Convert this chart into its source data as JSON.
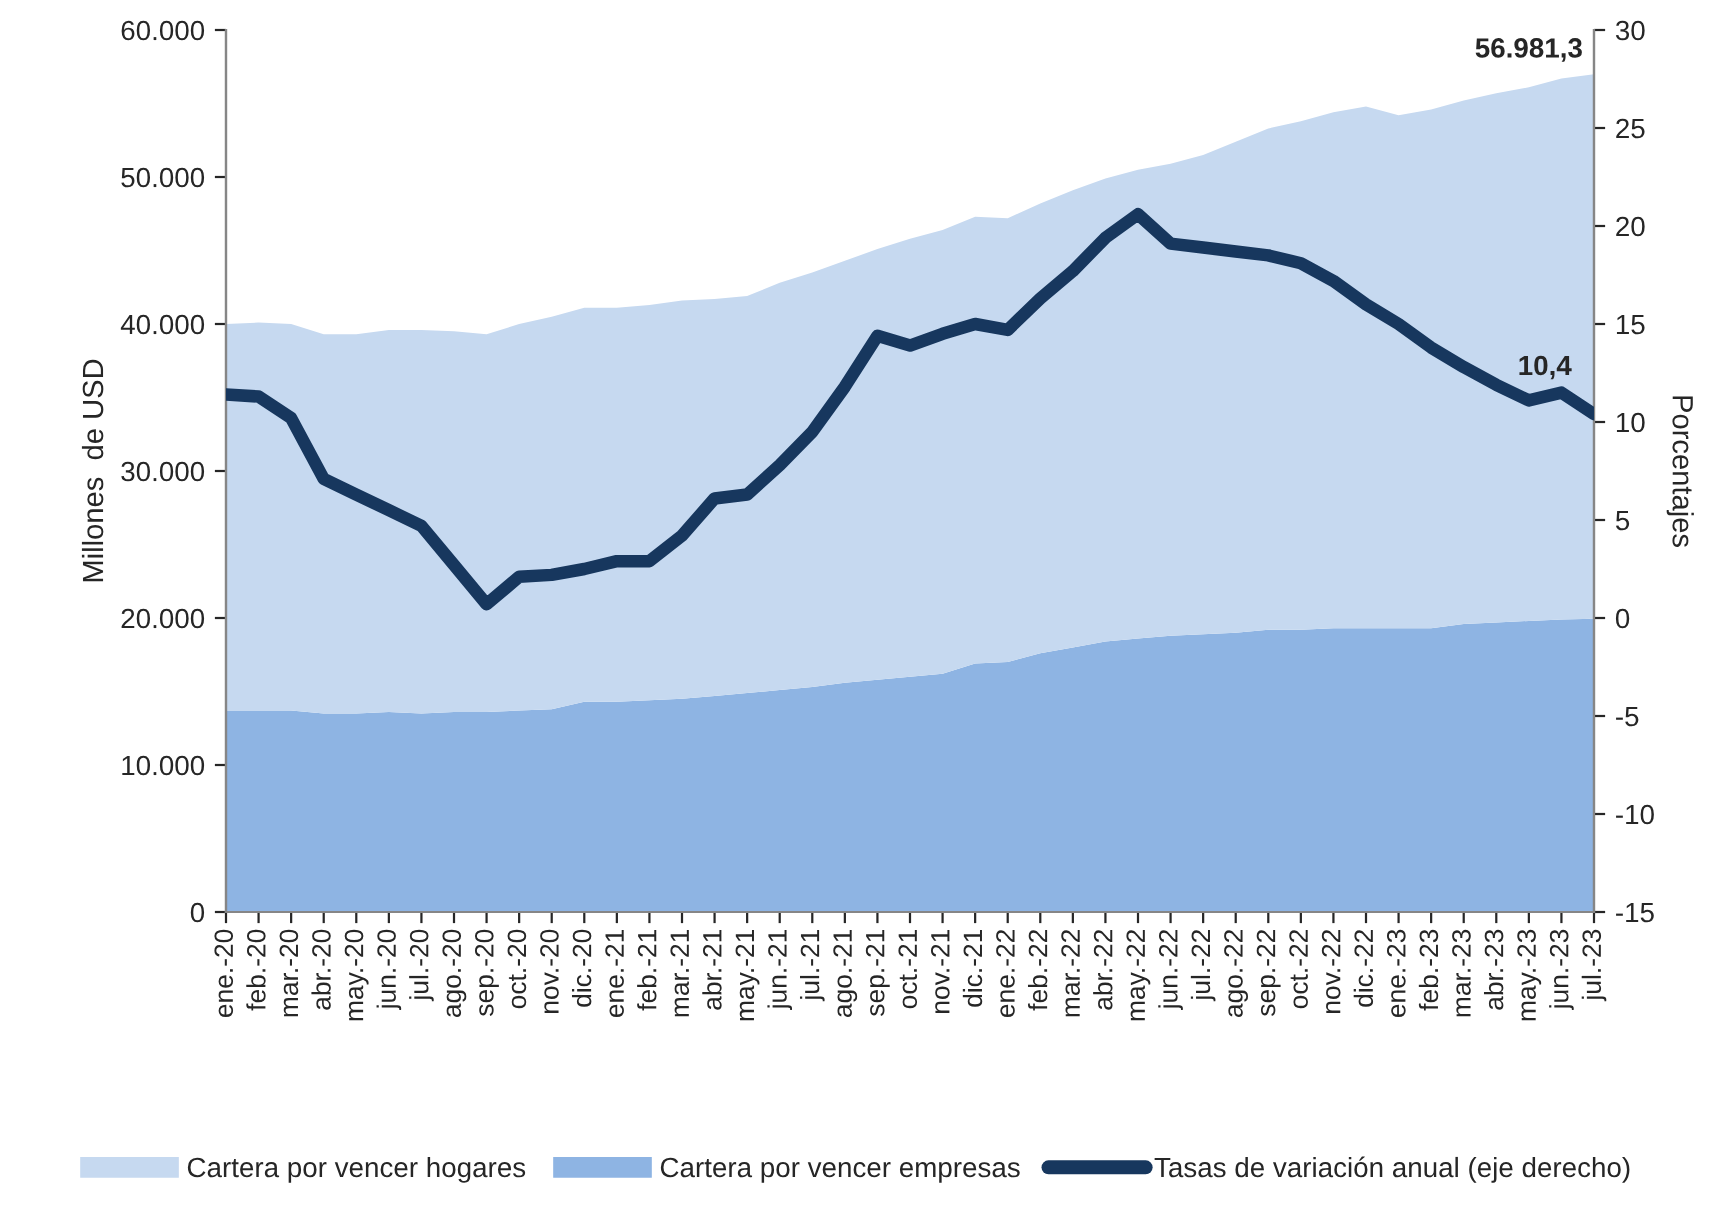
{
  "chart_data": {
    "type": "area",
    "stacked": true,
    "categories": [
      "ene.-20",
      "feb.-20",
      "mar.-20",
      "abr.-20",
      "may.-20",
      "jun.-20",
      "jul.-20",
      "ago.-20",
      "sep.-20",
      "oct.-20",
      "nov.-20",
      "dic.-20",
      "ene.-21",
      "feb.-21",
      "mar.-21",
      "abr.-21",
      "may.-21",
      "jun.-21",
      "jul.-21",
      "ago.-21",
      "sep.-21",
      "oct.-21",
      "nov.-21",
      "dic.-21",
      "ene.-22",
      "feb.-22",
      "mar.-22",
      "abr.-22",
      "may.-22",
      "jun.-22",
      "jul.-22",
      "ago.-22",
      "sep.-22",
      "oct.-22",
      "nov.-22",
      "dic.-22",
      "ene.-23",
      "feb.-23",
      "mar.-23",
      "abr.-23",
      "may.-23",
      "jun.-23",
      "jul.-23"
    ],
    "series": [
      {
        "name": "Cartera por vencer empresas",
        "color": "#8eb4e3",
        "values": [
          13700,
          13700,
          13700,
          13500,
          13500,
          13600,
          13500,
          13600,
          13600,
          13700,
          13800,
          14300,
          14300,
          14400,
          14500,
          14700,
          14900,
          15100,
          15300,
          15600,
          15800,
          16000,
          16200,
          16900,
          17000,
          17600,
          18000,
          18400,
          18600,
          18800,
          18900,
          19000,
          19200,
          19200,
          19300,
          19300,
          19300,
          19300,
          19600,
          19700,
          19800,
          19900,
          19950
        ]
      },
      {
        "name": "Cartera por vencer hogares",
        "color": "#c6d9f0",
        "values": [
          26300,
          26400,
          26300,
          25800,
          25800,
          26000,
          26100,
          25900,
          25700,
          26300,
          26700,
          26800,
          26800,
          26900,
          27100,
          27000,
          27000,
          27700,
          28200,
          28700,
          29300,
          29800,
          30200,
          30400,
          30200,
          30600,
          31100,
          31500,
          31900,
          32100,
          32600,
          33400,
          34100,
          34600,
          35100,
          35500,
          34900,
          35300,
          35600,
          36000,
          36300,
          36800,
          37031.3
        ]
      },
      {
        "name": "Tasas de variación anual (eje derecho)",
        "type": "line",
        "axis": "y2",
        "color": "#17375e",
        "values": [
          11.4,
          11.3,
          10.2,
          7.1,
          6.3,
          5.5,
          4.7,
          2.7,
          0.7,
          2.1,
          2.2,
          2.5,
          2.9,
          2.9,
          4.2,
          6.1,
          6.3,
          7.8,
          9.5,
          11.8,
          14.4,
          13.9,
          14.5,
          15.0,
          14.7,
          16.3,
          17.7,
          19.4,
          20.6,
          19.1,
          18.9,
          18.7,
          18.5,
          18.1,
          17.2,
          16.0,
          15.0,
          13.8,
          12.8,
          11.9,
          11.1,
          11.5,
          10.4
        ],
        "value_labels": [
          null,
          null,
          null,
          null,
          null,
          null,
          null,
          null,
          null,
          null,
          null,
          null,
          null,
          null,
          null,
          null,
          null,
          null,
          null,
          null,
          null,
          null,
          null,
          null,
          null,
          null,
          null,
          null,
          null,
          null,
          null,
          null,
          null,
          null,
          null,
          null,
          null,
          null,
          null,
          null,
          null,
          null,
          "10,4"
        ]
      }
    ],
    "totals": [
      null,
      null,
      null,
      null,
      null,
      null,
      null,
      null,
      null,
      null,
      null,
      null,
      null,
      null,
      null,
      null,
      null,
      null,
      null,
      null,
      null,
      null,
      null,
      null,
      null,
      null,
      null,
      null,
      null,
      null,
      null,
      null,
      null,
      null,
      null,
      null,
      null,
      null,
      null,
      null,
      null,
      null,
      "56.981,3"
    ],
    "ylabel": "Millones  de USD",
    "y2label": "Porcentajes",
    "ylim": [
      0,
      60000
    ],
    "yticks": [
      {
        "value": 0,
        "label": "0"
      },
      {
        "value": 10000,
        "label": "10.000"
      },
      {
        "value": 20000,
        "label": "20.000"
      },
      {
        "value": 30000,
        "label": "30.000"
      },
      {
        "value": 40000,
        "label": "40.000"
      },
      {
        "value": 50000,
        "label": "50.000"
      },
      {
        "value": 60000,
        "label": "60.000"
      }
    ],
    "y2lim": [
      -15,
      30
    ],
    "y2ticks": [
      -15,
      -10,
      -5,
      0,
      5,
      10,
      15,
      20,
      25,
      30
    ],
    "grid": false,
    "legend": "bottom"
  }
}
